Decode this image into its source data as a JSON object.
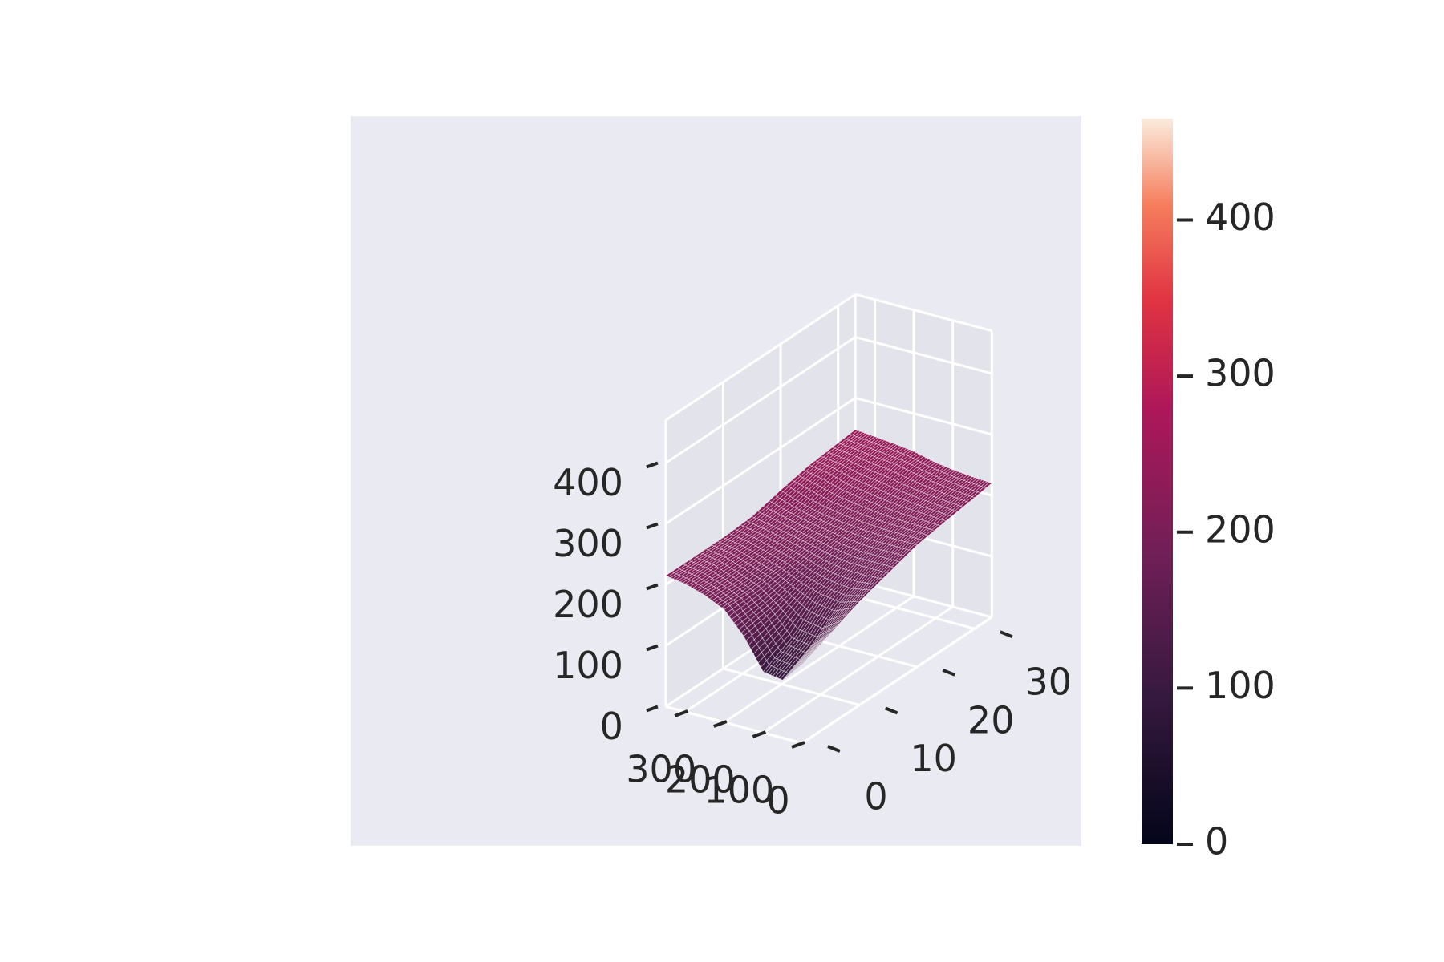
{
  "chart_data": {
    "type": "surface",
    "title": "",
    "xlabel": "",
    "ylabel": "",
    "zlabel": "",
    "colormap": "rocket",
    "background_color": "#eaeaf2",
    "grid": true,
    "x_axis": {
      "range": [
        0,
        350
      ],
      "ticks": [
        0,
        100,
        200,
        300
      ],
      "tick_labels": [
        "0",
        "100",
        "200",
        "300"
      ]
    },
    "y_axis": {
      "range": [
        0,
        33
      ],
      "ticks": [
        0,
        10,
        20,
        30
      ],
      "tick_labels": [
        "0",
        "10",
        "20",
        "30"
      ]
    },
    "z_axis": {
      "range": [
        0,
        470
      ],
      "ticks": [
        0,
        100,
        200,
        300,
        400
      ],
      "tick_labels": [
        "0",
        "100",
        "200",
        "300",
        "400"
      ]
    },
    "colorbar": {
      "range": [
        0,
        465
      ],
      "ticks": [
        0,
        100,
        200,
        300,
        400
      ],
      "tick_labels": [
        "0",
        "100",
        "200",
        "300",
        "400"
      ]
    },
    "grid_x": [
      0,
      50,
      100,
      150,
      200,
      250,
      300,
      350
    ],
    "grid_y": [
      0,
      5,
      10,
      15,
      20,
      25,
      30,
      33
    ],
    "z": [
      [
        130,
        95,
        100,
        150,
        185,
        200,
        210,
        215
      ],
      [
        150,
        120,
        125,
        160,
        185,
        198,
        210,
        215
      ],
      [
        170,
        160,
        165,
        175,
        190,
        200,
        210,
        215
      ],
      [
        185,
        185,
        185,
        190,
        198,
        205,
        212,
        218
      ],
      [
        200,
        200,
        200,
        202,
        205,
        210,
        218,
        230
      ],
      [
        208,
        210,
        212,
        215,
        220,
        225,
        235,
        240
      ],
      [
        215,
        218,
        222,
        228,
        235,
        238,
        242,
        245
      ],
      [
        220,
        222,
        225,
        230,
        238,
        242,
        245,
        248
      ]
    ]
  }
}
